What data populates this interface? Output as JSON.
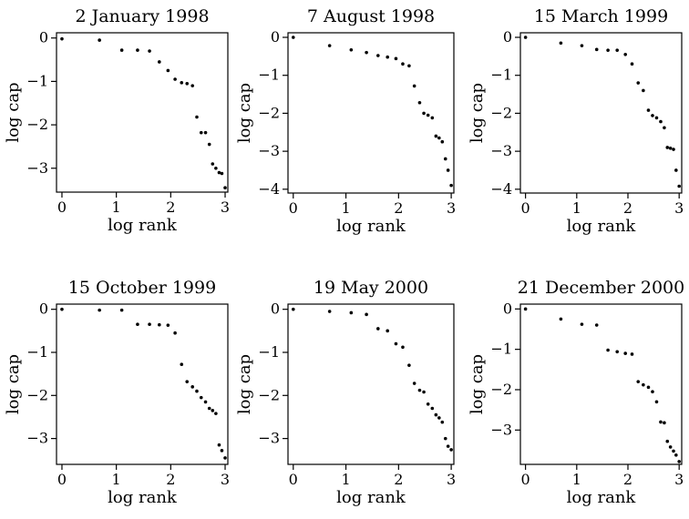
{
  "chart_data": [
    {
      "type": "scatter",
      "title": "2 January 1998",
      "xlabel": "log rank",
      "ylabel": "log cap",
      "xlim": [
        -0.1,
        3.05
      ],
      "ylim": [
        -3.55,
        0.12
      ],
      "xticks": [
        0,
        1,
        2,
        3
      ],
      "yticks": [
        -3,
        -2,
        -1,
        0
      ],
      "x": [
        0.0,
        0.69,
        1.1,
        1.39,
        1.61,
        1.79,
        1.95,
        2.08,
        2.2,
        2.3,
        2.4,
        2.48,
        2.56,
        2.64,
        2.71,
        2.77,
        2.83,
        2.89,
        2.94,
        3.0
      ],
      "y": [
        -0.02,
        -0.05,
        -0.28,
        -0.28,
        -0.3,
        -0.55,
        -0.75,
        -0.95,
        -1.03,
        -1.05,
        -1.1,
        -1.82,
        -2.18,
        -2.18,
        -2.45,
        -2.9,
        -3.0,
        -3.1,
        -3.12,
        -3.45
      ]
    },
    {
      "type": "scatter",
      "title": "7 August 1998",
      "xlabel": "log rank",
      "ylabel": "log cap",
      "xlim": [
        -0.1,
        3.05
      ],
      "ylim": [
        -4.1,
        0.12
      ],
      "xticks": [
        0,
        1,
        2,
        3
      ],
      "yticks": [
        -4,
        -3,
        -2,
        -1,
        0
      ],
      "x": [
        0.0,
        0.69,
        1.1,
        1.39,
        1.61,
        1.79,
        1.95,
        2.08,
        2.2,
        2.3,
        2.4,
        2.48,
        2.56,
        2.64,
        2.71,
        2.77,
        2.83,
        2.89,
        2.94,
        3.0
      ],
      "y": [
        0.0,
        -0.22,
        -0.33,
        -0.4,
        -0.48,
        -0.52,
        -0.56,
        -0.7,
        -0.75,
        -1.28,
        -1.72,
        -2.0,
        -2.05,
        -2.12,
        -2.6,
        -2.65,
        -2.75,
        -3.2,
        -3.5,
        -3.9
      ]
    },
    {
      "type": "scatter",
      "title": "15 March 1999",
      "xlabel": "log rank",
      "ylabel": "log cap",
      "xlim": [
        -0.1,
        3.05
      ],
      "ylim": [
        -4.1,
        0.12
      ],
      "xticks": [
        0,
        1,
        2,
        3
      ],
      "yticks": [
        -4,
        -3,
        -2,
        -1,
        0
      ],
      "x": [
        0.0,
        0.69,
        1.1,
        1.39,
        1.61,
        1.79,
        1.95,
        2.08,
        2.2,
        2.3,
        2.4,
        2.48,
        2.56,
        2.64,
        2.71,
        2.77,
        2.83,
        2.89,
        2.94,
        3.0
      ],
      "y": [
        0.0,
        -0.15,
        -0.22,
        -0.32,
        -0.34,
        -0.34,
        -0.45,
        -0.7,
        -1.2,
        -1.4,
        -1.92,
        -2.06,
        -2.12,
        -2.22,
        -2.38,
        -2.9,
        -2.92,
        -2.95,
        -3.5,
        -3.92
      ]
    },
    {
      "type": "scatter",
      "title": "15 October 1999",
      "xlabel": "log rank",
      "ylabel": "log cap",
      "xlim": [
        -0.1,
        3.05
      ],
      "ylim": [
        -3.6,
        0.12
      ],
      "xticks": [
        0,
        1,
        2,
        3
      ],
      "yticks": [
        -3,
        -2,
        -1,
        0
      ],
      "x": [
        0.0,
        0.69,
        1.1,
        1.39,
        1.61,
        1.79,
        1.95,
        2.08,
        2.2,
        2.3,
        2.4,
        2.48,
        2.56,
        2.64,
        2.71,
        2.77,
        2.83,
        2.89,
        2.94,
        3.0
      ],
      "y": [
        0.0,
        -0.02,
        -0.02,
        -0.35,
        -0.35,
        -0.36,
        -0.37,
        -0.55,
        -1.28,
        -1.68,
        -1.8,
        -1.9,
        -2.05,
        -2.15,
        -2.3,
        -2.35,
        -2.42,
        -3.15,
        -3.28,
        -3.45
      ]
    },
    {
      "type": "scatter",
      "title": "19 May 2000",
      "xlabel": "log rank",
      "ylabel": "log cap",
      "xlim": [
        -0.1,
        3.05
      ],
      "ylim": [
        -3.6,
        0.12
      ],
      "xticks": [
        0,
        1,
        2,
        3
      ],
      "yticks": [
        -3,
        -2,
        -1,
        0
      ],
      "x": [
        0.0,
        0.69,
        1.1,
        1.39,
        1.61,
        1.79,
        1.95,
        2.08,
        2.2,
        2.3,
        2.4,
        2.48,
        2.56,
        2.64,
        2.71,
        2.77,
        2.83,
        2.89,
        2.94,
        3.0
      ],
      "y": [
        0.0,
        -0.05,
        -0.08,
        -0.12,
        -0.45,
        -0.5,
        -0.8,
        -0.88,
        -1.3,
        -1.72,
        -1.88,
        -1.92,
        -2.2,
        -2.3,
        -2.45,
        -2.52,
        -2.62,
        -3.0,
        -3.18,
        -3.26
      ]
    },
    {
      "type": "scatter",
      "title": "21 December 2000",
      "xlabel": "log rank",
      "ylabel": "log cap",
      "xlim": [
        -0.1,
        3.05
      ],
      "ylim": [
        -3.85,
        0.12
      ],
      "xticks": [
        0,
        1,
        2,
        3
      ],
      "yticks": [
        -3,
        -2,
        -1,
        0
      ],
      "x": [
        0.0,
        0.69,
        1.1,
        1.39,
        1.61,
        1.79,
        1.95,
        2.08,
        2.2,
        2.3,
        2.4,
        2.48,
        2.56,
        2.64,
        2.71,
        2.77,
        2.83,
        2.89,
        2.94,
        3.0
      ],
      "y": [
        0.0,
        -0.25,
        -0.38,
        -0.4,
        -1.02,
        -1.06,
        -1.1,
        -1.12,
        -1.8,
        -1.88,
        -1.94,
        -2.05,
        -2.3,
        -2.8,
        -2.82,
        -3.28,
        -3.42,
        -3.52,
        -3.62,
        -3.78
      ]
    }
  ]
}
